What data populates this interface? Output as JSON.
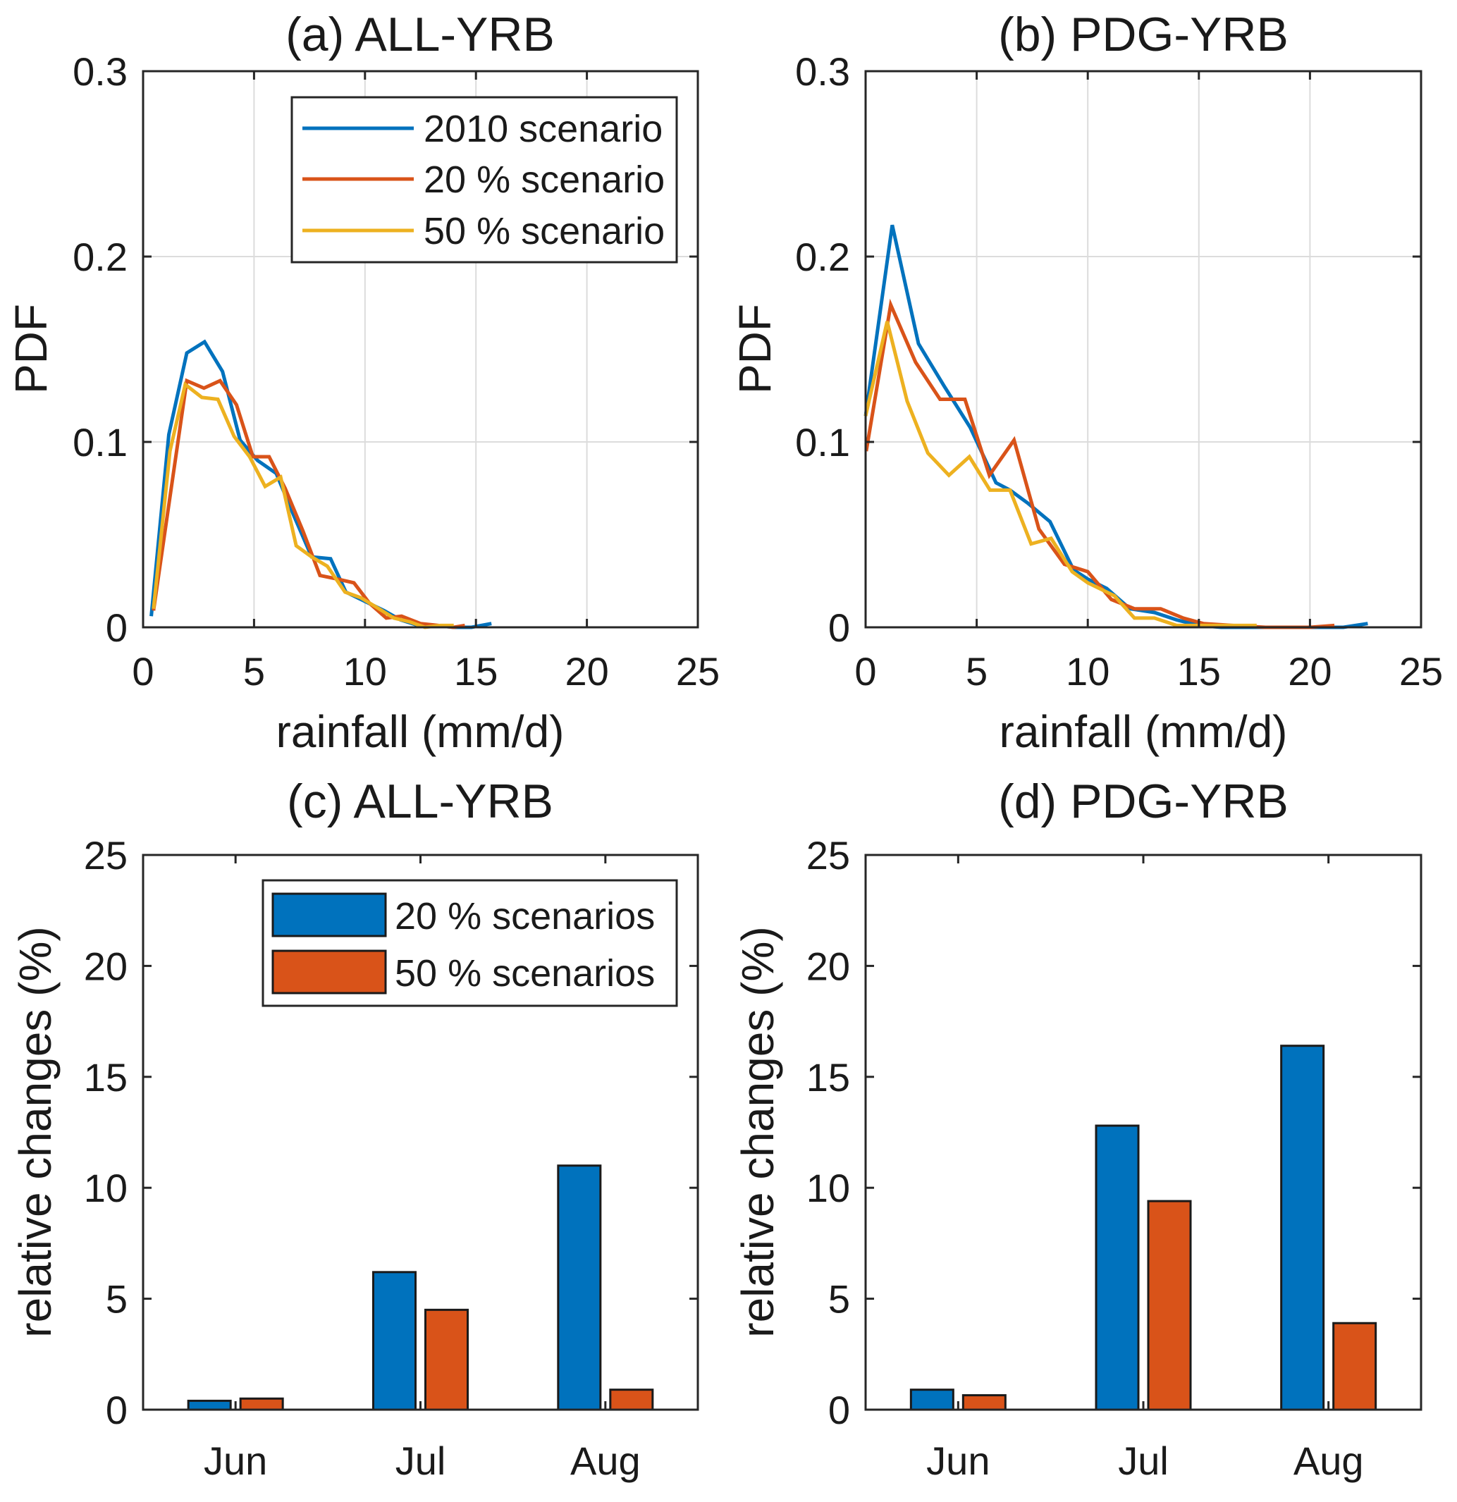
{
  "figure": {
    "colors": {
      "blue": "#0072BD",
      "red": "#D95319",
      "yellow": "#EDB120"
    }
  },
  "chart_data": [
    {
      "id": "a",
      "type": "line",
      "title": "(a) ALL-YRB",
      "xlabel": "rainfall (mm/d)",
      "ylabel": "PDF",
      "xlim": [
        0,
        25
      ],
      "ylim": [
        0,
        0.3
      ],
      "xticks": [
        0,
        5,
        10,
        15,
        20,
        25
      ],
      "xtick_labels": [
        "0",
        "5",
        "10",
        "15",
        "20",
        "25"
      ],
      "yticks": [
        0,
        0.1,
        0.2,
        0.3
      ],
      "ytick_labels": [
        "0",
        "0.1",
        "0.2",
        "0.3"
      ],
      "grid": true,
      "legend": {
        "placement": "top-right",
        "entries": [
          "2010 scenario",
          "20 % scenario",
          "50 % scenario"
        ]
      },
      "series": [
        {
          "name": "2010 scenario",
          "color": "#0072BD",
          "points": [
            [
              0.37,
              0.006
            ],
            [
              1.16,
              0.104
            ],
            [
              1.97,
              0.148
            ],
            [
              2.77,
              0.154
            ],
            [
              3.58,
              0.138
            ],
            [
              4.37,
              0.101
            ],
            [
              5.16,
              0.09
            ],
            [
              6.0,
              0.083
            ],
            [
              6.8,
              0.06
            ],
            [
              7.6,
              0.038
            ],
            [
              8.45,
              0.037
            ],
            [
              9.14,
              0.019
            ],
            [
              10.0,
              0.014
            ],
            [
              10.86,
              0.009
            ],
            [
              11.6,
              0.004
            ],
            [
              12.4,
              0.001
            ],
            [
              13.2,
              0.001
            ],
            [
              14.0,
              0.0
            ],
            [
              14.8,
              0.0
            ],
            [
              15.7,
              0.002
            ]
          ]
        },
        {
          "name": "20 % scenario",
          "color": "#D95319",
          "points": [
            [
              0.47,
              0.009
            ],
            [
              1.97,
              0.133
            ],
            [
              2.74,
              0.129
            ],
            [
              3.47,
              0.133
            ],
            [
              4.21,
              0.12
            ],
            [
              4.95,
              0.092
            ],
            [
              5.68,
              0.092
            ],
            [
              6.4,
              0.075
            ],
            [
              7.2,
              0.052
            ],
            [
              7.97,
              0.028
            ],
            [
              8.76,
              0.026
            ],
            [
              9.5,
              0.024
            ],
            [
              10.2,
              0.013
            ],
            [
              10.96,
              0.005
            ],
            [
              11.65,
              0.006
            ],
            [
              12.5,
              0.002
            ],
            [
              13.3,
              0.001
            ],
            [
              14.0,
              0.0
            ],
            [
              14.5,
              0.001
            ]
          ]
        },
        {
          "name": "50 % scenario",
          "color": "#EDB120",
          "points": [
            [
              0.47,
              0.01
            ],
            [
              1.21,
              0.095
            ],
            [
              1.9,
              0.131
            ],
            [
              2.65,
              0.124
            ],
            [
              3.37,
              0.123
            ],
            [
              4.1,
              0.103
            ],
            [
              4.8,
              0.092
            ],
            [
              5.5,
              0.076
            ],
            [
              6.2,
              0.081
            ],
            [
              6.9,
              0.044
            ],
            [
              7.6,
              0.038
            ],
            [
              8.3,
              0.033
            ],
            [
              9.1,
              0.019
            ],
            [
              9.8,
              0.016
            ],
            [
              10.5,
              0.011
            ],
            [
              11.3,
              0.005
            ],
            [
              12.0,
              0.003
            ],
            [
              12.7,
              0.0
            ],
            [
              13.4,
              0.001
            ],
            [
              14.0,
              0.001
            ]
          ]
        }
      ]
    },
    {
      "id": "b",
      "type": "line",
      "title": "(b) PDG-YRB",
      "xlabel": "rainfall (mm/d)",
      "ylabel": "PDF",
      "xlim": [
        0,
        25
      ],
      "ylim": [
        0,
        0.3
      ],
      "xticks": [
        0,
        5,
        10,
        15,
        20,
        25
      ],
      "xtick_labels": [
        "0",
        "5",
        "10",
        "15",
        "20",
        "25"
      ],
      "yticks": [
        0,
        0.1,
        0.2,
        0.3
      ],
      "ytick_labels": [
        "0",
        "0.1",
        "0.2",
        "0.3"
      ],
      "grid": true,
      "series": [
        {
          "name": "2010 scenario",
          "color": "#0072BD",
          "points": [
            [
              0.0,
              0.114
            ],
            [
              1.2,
              0.217
            ],
            [
              2.38,
              0.153
            ],
            [
              3.54,
              0.13
            ],
            [
              4.7,
              0.108
            ],
            [
              5.87,
              0.078
            ],
            [
              6.5,
              0.074
            ],
            [
              7.3,
              0.067
            ],
            [
              8.3,
              0.057
            ],
            [
              9.36,
              0.031
            ],
            [
              10.0,
              0.026
            ],
            [
              10.85,
              0.021
            ],
            [
              11.9,
              0.01
            ],
            [
              13.0,
              0.008
            ],
            [
              14.0,
              0.004
            ],
            [
              15.0,
              0.001
            ],
            [
              16.0,
              0.0
            ],
            [
              18.0,
              0.0
            ],
            [
              20.0,
              0.0
            ],
            [
              21.5,
              0.0
            ],
            [
              22.6,
              0.002
            ]
          ]
        },
        {
          "name": "20 % scenario",
          "color": "#D95319",
          "points": [
            [
              0.03,
              0.095
            ],
            [
              1.13,
              0.174
            ],
            [
              2.25,
              0.143
            ],
            [
              3.35,
              0.123
            ],
            [
              4.47,
              0.123
            ],
            [
              5.57,
              0.082
            ],
            [
              6.68,
              0.101
            ],
            [
              7.8,
              0.053
            ],
            [
              8.95,
              0.034
            ],
            [
              10.0,
              0.03
            ],
            [
              11.06,
              0.015
            ],
            [
              12.1,
              0.01
            ],
            [
              13.28,
              0.01
            ],
            [
              14.3,
              0.005
            ],
            [
              15.2,
              0.002
            ],
            [
              16.5,
              0.001
            ],
            [
              18.0,
              0.0
            ],
            [
              20.0,
              0.0
            ],
            [
              21.1,
              0.001
            ]
          ]
        },
        {
          "name": "50 % scenario",
          "color": "#EDB120",
          "points": [
            [
              0.0,
              0.114
            ],
            [
              0.97,
              0.165
            ],
            [
              1.87,
              0.122
            ],
            [
              2.8,
              0.094
            ],
            [
              3.75,
              0.082
            ],
            [
              4.67,
              0.092
            ],
            [
              5.6,
              0.074
            ],
            [
              6.5,
              0.074
            ],
            [
              7.45,
              0.045
            ],
            [
              8.35,
              0.048
            ],
            [
              9.3,
              0.03
            ],
            [
              10.0,
              0.024
            ],
            [
              11.2,
              0.017
            ],
            [
              12.1,
              0.005
            ],
            [
              13.0,
              0.005
            ],
            [
              14.0,
              0.001
            ],
            [
              15.0,
              0.001
            ],
            [
              16.5,
              0.001
            ],
            [
              17.6,
              0.001
            ]
          ]
        }
      ]
    },
    {
      "id": "c",
      "type": "bar",
      "title": "(c) ALL-YRB",
      "xlabel": "",
      "ylabel": "relative changes (%)",
      "categories": [
        "Jun",
        "Jul",
        "Aug"
      ],
      "ylim": [
        0,
        25
      ],
      "yticks": [
        0,
        5,
        10,
        15,
        20,
        25
      ],
      "ytick_labels": [
        "0",
        "5",
        "10",
        "15",
        "20",
        "25"
      ],
      "grid": false,
      "legend": {
        "placement": "top-right",
        "entries": [
          "20 % scenarios",
          "50 % scenarios"
        ]
      },
      "series": [
        {
          "name": "20 % scenarios",
          "color": "#0072BD",
          "values": [
            0.4,
            6.2,
            11.0
          ]
        },
        {
          "name": "50 % scenarios",
          "color": "#D95319",
          "values": [
            0.5,
            4.5,
            0.9
          ]
        }
      ]
    },
    {
      "id": "d",
      "type": "bar",
      "title": "(d) PDG-YRB",
      "xlabel": "",
      "ylabel": "relative changes (%)",
      "categories": [
        "Jun",
        "Jul",
        "Aug"
      ],
      "ylim": [
        0,
        25
      ],
      "yticks": [
        0,
        5,
        10,
        15,
        20,
        25
      ],
      "ytick_labels": [
        "0",
        "5",
        "10",
        "15",
        "20",
        "25"
      ],
      "grid": false,
      "series": [
        {
          "name": "20 % scenarios",
          "color": "#0072BD",
          "values": [
            0.9,
            12.8,
            16.4
          ]
        },
        {
          "name": "50 % scenarios",
          "color": "#D95319",
          "values": [
            0.65,
            9.4,
            3.9
          ]
        }
      ]
    }
  ]
}
